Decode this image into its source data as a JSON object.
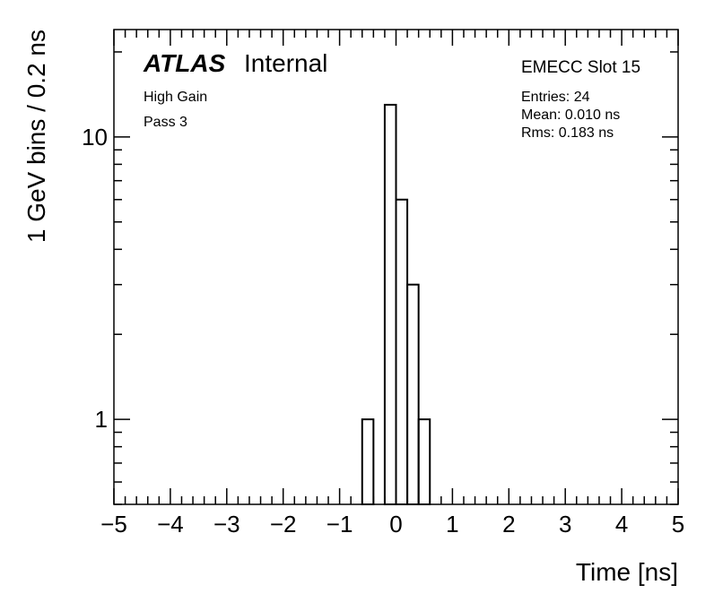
{
  "chart_data": {
    "type": "histogram",
    "title": "EMECC Slot 15",
    "atlas_label": "ATLAS",
    "atlas_status": "Internal",
    "annotations": [
      "High Gain",
      "Pass 3"
    ],
    "stats": [
      "Entries: 24",
      "Mean: 0.010 ns",
      "Rms: 0.183 ns"
    ],
    "xlabel": "Time [ns]",
    "ylabel": "1 GeV bins / 0.2 ns",
    "bins": [
      -0.6,
      -0.4,
      -0.2,
      0,
      0.2,
      0.4,
      0.6
    ],
    "values": [
      1,
      0,
      13,
      6,
      3,
      1
    ],
    "color": "#000000",
    "xlim": [
      -5,
      5
    ],
    "xticks": [
      {
        "value": -5,
        "label": "−5"
      },
      {
        "value": -4,
        "label": "−4"
      },
      {
        "value": -3,
        "label": "−3"
      },
      {
        "value": -2,
        "label": "−2"
      },
      {
        "value": -1,
        "label": "−1"
      },
      0,
      1,
      2,
      3,
      4,
      5
    ],
    "ylim": [
      0.5,
      24
    ],
    "yticks": [
      1,
      10
    ],
    "log_y": true
  }
}
